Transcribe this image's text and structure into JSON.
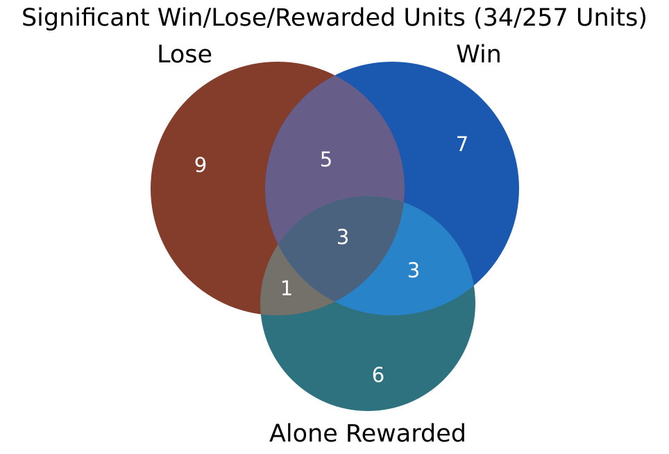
{
  "title": "Significant Win/Lose/Rewarded Units (34/257 Units)",
  "colors": {
    "lose_only": "#843c2b",
    "win_only": "#1b58b0",
    "rewarded_only": "#2d727e",
    "lose_win": "#665e88",
    "lose_rewarded": "#74706a",
    "win_rewarded": "#2983c8",
    "all_three": "#4b627e",
    "count_text": "#ffffff",
    "label_text": "#000000"
  },
  "chart_data": {
    "type": "venn",
    "title": "Significant Win/Lose/Rewarded Units (34/257 Units)",
    "sets": [
      {
        "id": "lose",
        "label": "Lose"
      },
      {
        "id": "win",
        "label": "Win"
      },
      {
        "id": "rewarded",
        "label": "Alone Rewarded"
      }
    ],
    "regions": {
      "lose_only": "9",
      "win_only": "7",
      "rewarded_only": "6",
      "lose_win": "5",
      "lose_rewarded": "1",
      "win_rewarded": "3",
      "all_three": "3"
    }
  }
}
